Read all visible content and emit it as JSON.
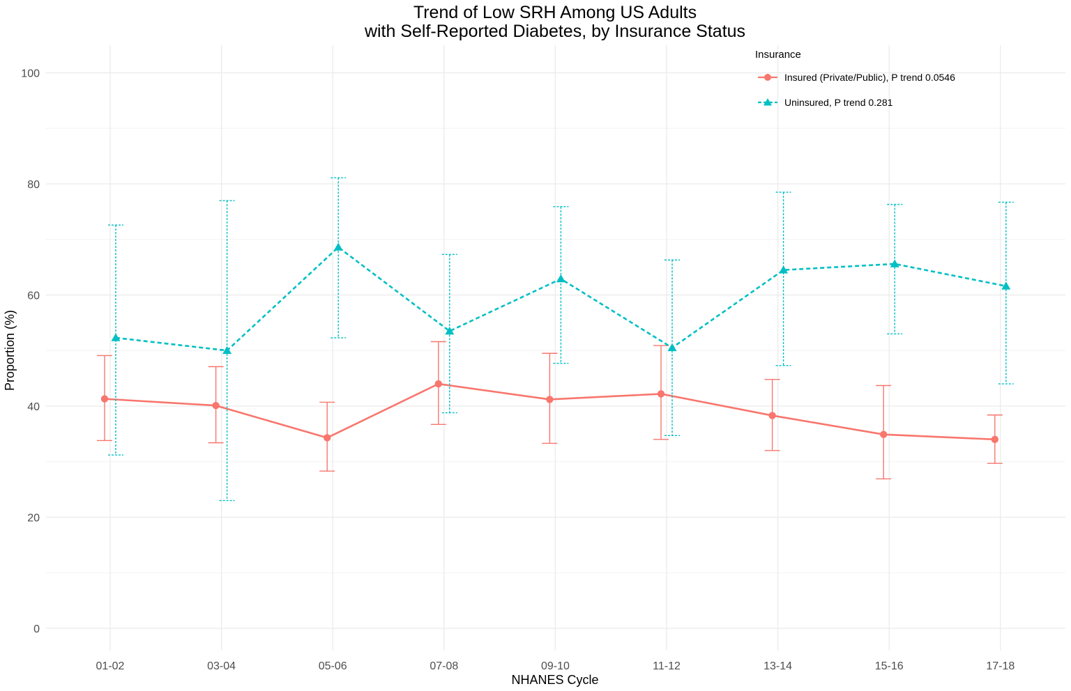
{
  "chart_data": {
    "type": "line",
    "title": "Trend of Low SRH Among US Adults",
    "subtitle": "with Self-Reported Diabetes, by Insurance Status",
    "xlabel": "NHANES Cycle",
    "ylabel": "Proportion (%)",
    "ylim": [
      -4,
      105
    ],
    "yticks": [
      0,
      20,
      40,
      60,
      80,
      100
    ],
    "grid": true,
    "legend_title": "Insurance",
    "legend_position": "top-right",
    "categories": [
      "01-02",
      "03-04",
      "05-06",
      "07-08",
      "09-10",
      "11-12",
      "13-14",
      "15-16",
      "17-18"
    ],
    "series": [
      {
        "name": "Insured (Private/Public), P trend 0.0546",
        "color": "#F8766D",
        "marker": "circle",
        "line_style": "solid",
        "values": [
          41.3,
          40.1,
          34.3,
          44.0,
          41.2,
          42.2,
          38.3,
          34.9,
          34.0
        ],
        "lower": [
          33.8,
          33.4,
          28.3,
          36.7,
          33.3,
          34.0,
          32.0,
          26.9,
          29.7
        ],
        "upper": [
          49.1,
          47.1,
          40.7,
          51.6,
          49.5,
          50.9,
          44.8,
          43.7,
          38.4
        ]
      },
      {
        "name": "Uninsured, P trend 0.281",
        "color": "#00BFC4",
        "marker": "triangle",
        "line_style": "dashed",
        "values": [
          52.3,
          50.0,
          68.6,
          53.5,
          62.9,
          50.5,
          64.5,
          65.6,
          61.6
        ],
        "lower": [
          31.2,
          23.0,
          52.3,
          38.8,
          47.7,
          34.7,
          47.3,
          53.0,
          44.0
        ],
        "upper": [
          72.6,
          77.0,
          81.1,
          67.3,
          75.9,
          66.3,
          78.5,
          76.3,
          76.7
        ]
      }
    ]
  }
}
